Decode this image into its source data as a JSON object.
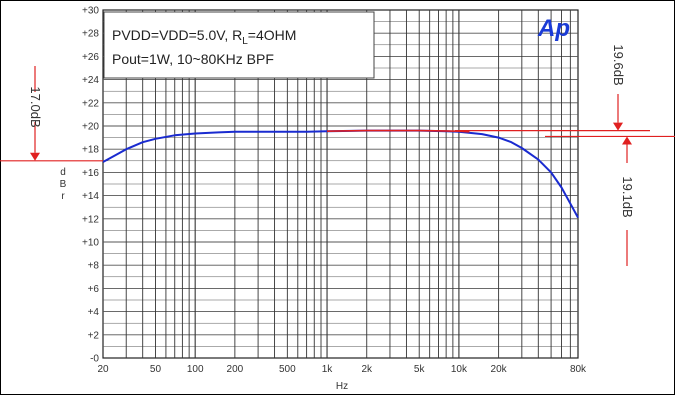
{
  "chart_data": {
    "type": "line",
    "annotation_lines": [
      "PVDD=VDD=5.0V, R",
      "L",
      "=4OHM",
      "Pout=1W, 10~80KHz BPF"
    ],
    "logo": "Ap",
    "ylabel": "d\nB\nr",
    "xlabel": "Hz",
    "y_scale": "linear",
    "ylim": [
      0,
      30
    ],
    "yticks": [
      "+30",
      "+28",
      "+26",
      "+24",
      "+22",
      "+20",
      "+18",
      "+16",
      "+14",
      "+12",
      "+10",
      "+8",
      "+6",
      "+4",
      "+2",
      "-0"
    ],
    "x_scale": "log",
    "xlim": [
      20,
      80000
    ],
    "xticks": [
      {
        "value": 20,
        "label": "20"
      },
      {
        "value": 50,
        "label": "50"
      },
      {
        "value": 100,
        "label": "100"
      },
      {
        "value": 200,
        "label": "200"
      },
      {
        "value": 500,
        "label": "500"
      },
      {
        "value": 1000,
        "label": "1k"
      },
      {
        "value": 2000,
        "label": "2k"
      },
      {
        "value": 5000,
        "label": "5k"
      },
      {
        "value": 10000,
        "label": "10k"
      },
      {
        "value": 20000,
        "label": "20k"
      },
      {
        "value": 80000,
        "label": "80k"
      }
    ],
    "grid": true,
    "series": [
      {
        "color": "#1a2bd0",
        "x": [
          20,
          25,
          30,
          40,
          50,
          70,
          100,
          150,
          200,
          300,
          500,
          700,
          1000,
          2000,
          5000,
          8000,
          10000,
          15000,
          20000,
          25000,
          30000,
          40000,
          50000,
          60000,
          70000,
          80000
        ],
        "y": [
          16.9,
          17.5,
          18.0,
          18.6,
          18.9,
          19.2,
          19.35,
          19.45,
          19.5,
          19.5,
          19.5,
          19.5,
          19.55,
          19.6,
          19.6,
          19.55,
          19.5,
          19.3,
          19.0,
          18.6,
          18.1,
          17.1,
          16.0,
          14.7,
          13.3,
          12.1
        ]
      },
      {
        "color": "#e02020",
        "x": [
          1000,
          2000,
          5000,
          10000,
          12000
        ],
        "y": [
          19.55,
          19.6,
          19.6,
          19.55,
          19.5
        ]
      }
    ],
    "reference_lines": [
      {
        "label": "17.0dB",
        "y": 17.0,
        "color": "#e02020"
      },
      {
        "label": "19.6dB",
        "y": 19.6,
        "color": "#e02020"
      },
      {
        "label": "19.1dB",
        "y": 19.1,
        "color": "#e02020"
      }
    ]
  }
}
